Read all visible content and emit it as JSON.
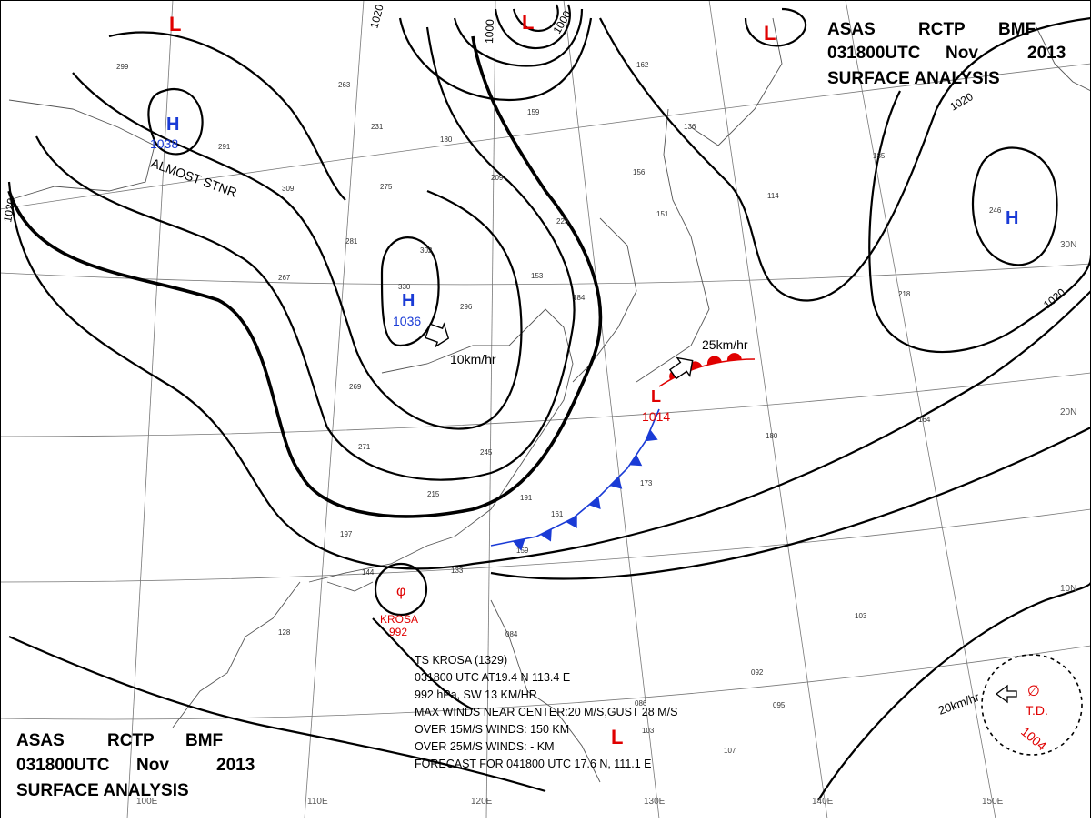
{
  "header_top": {
    "line1": [
      "ASAS",
      "RCTP",
      "BMF"
    ],
    "line2": [
      "031800UTC",
      "Nov",
      "2013"
    ],
    "line3": "SURFACE ANALYSIS"
  },
  "header_bottom": {
    "line1": [
      "ASAS",
      "RCTP",
      "BMF"
    ],
    "line2": [
      "031800UTC",
      "Nov",
      "2013"
    ],
    "line3": "SURFACE ANALYSIS"
  },
  "isobar_labels": [
    "1020",
    "1020",
    "1000",
    "1000",
    "1020",
    "1020"
  ],
  "grid_labels": {
    "lon": [
      "110E",
      "120E",
      "130E",
      "140E",
      "150E",
      "100E"
    ],
    "lat": [
      "30N",
      "20N",
      "10N"
    ]
  },
  "pressure_centers": [
    {
      "type": "H",
      "value": "1038",
      "note": "ALMOST STNR",
      "color": "#1a3bd6"
    },
    {
      "type": "H",
      "value": "1036",
      "motion": "10km/hr",
      "color": "#1a3bd6"
    },
    {
      "type": "H",
      "value": "",
      "color": "#1a3bd6"
    },
    {
      "type": "L",
      "value": "",
      "color": "#e00000"
    },
    {
      "type": "L",
      "value": "",
      "color": "#e00000"
    },
    {
      "type": "L",
      "value": "1014",
      "motion": "25km/hr",
      "color": "#e00000"
    },
    {
      "type": "L",
      "value": "",
      "color": "#e00000"
    }
  ],
  "tropical_storm": {
    "name": "KROSA",
    "pressure": "992",
    "symbol_color": "#e00000",
    "info": [
      "TS  KROSA  (1329)",
      "031800 UTC  AT19.4 N  113.4 E",
      "992 hPa, SW  13 KM/HR",
      "MAX WINDS NEAR CENTER:20 M/S,GUST 28 M/S",
      "OVER 15M/S WINDS: 150 KM",
      "OVER 25M/S WINDS:  - KM",
      "FORECAST FOR 041800 UTC 17.6 N, 111.1 E"
    ]
  },
  "tropical_depression": {
    "label": "T.D.",
    "pressure": "1004",
    "motion": "20km/hr",
    "color": "#e00000"
  },
  "fronts": {
    "cold_color": "#1a3bd6",
    "warm_color": "#e00000"
  },
  "station_samples": [
    "299",
    "291",
    "309",
    "263",
    "231",
    "180",
    "159",
    "209",
    "275",
    "281",
    "267",
    "330",
    "302",
    "296",
    "223",
    "153",
    "184",
    "162",
    "156",
    "151",
    "136",
    "114",
    "185",
    "246",
    "218",
    "269",
    "271",
    "245",
    "215",
    "191",
    "161",
    "173",
    "164",
    "180",
    "197",
    "144",
    "133",
    "128",
    "159",
    "103",
    "092",
    "095",
    "084",
    "086",
    "103",
    "107"
  ]
}
